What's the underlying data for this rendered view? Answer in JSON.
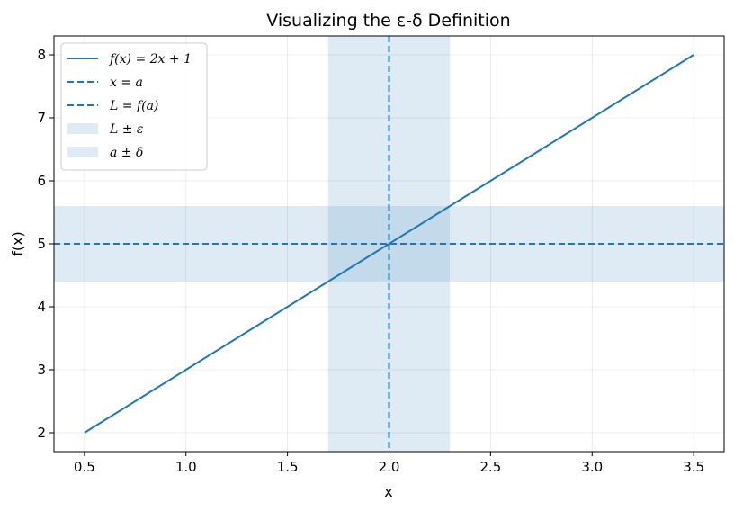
{
  "chart_data": {
    "type": "line",
    "title": "Visualizing the ε-δ Definition",
    "xlabel": "x",
    "ylabel": "f(x)",
    "xlim": [
      0.35,
      3.65
    ],
    "ylim": [
      1.7,
      8.3
    ],
    "xticks": [
      0.5,
      1.0,
      1.5,
      2.0,
      2.5,
      3.0,
      3.5
    ],
    "xtick_labels": [
      "0.5",
      "1.0",
      "1.5",
      "2.0",
      "2.5",
      "3.0",
      "3.5"
    ],
    "yticks": [
      2,
      3,
      4,
      5,
      6,
      7,
      8
    ],
    "ytick_labels": [
      "2",
      "3",
      "4",
      "5",
      "6",
      "7",
      "8"
    ],
    "grid": true,
    "legend_position": "top-left",
    "series": [
      {
        "name": "f(x) = 2x + 1",
        "kind": "line",
        "x": [
          0.5,
          3.5
        ],
        "y": [
          2,
          8
        ],
        "color": "#1f77b4"
      },
      {
        "name": "x = a",
        "kind": "vline",
        "x": 2.0,
        "color": "#1f77b4"
      },
      {
        "name": "L = f(a)",
        "kind": "hline",
        "y": 5.0,
        "color": "#1f77b4"
      },
      {
        "name": "L ± ε",
        "kind": "hband",
        "y": [
          4.4,
          5.6
        ],
        "color": "#1f77b4"
      },
      {
        "name": "a ± δ",
        "kind": "vband",
        "x": [
          1.7,
          2.3
        ],
        "color": "#1f77b4"
      }
    ]
  }
}
